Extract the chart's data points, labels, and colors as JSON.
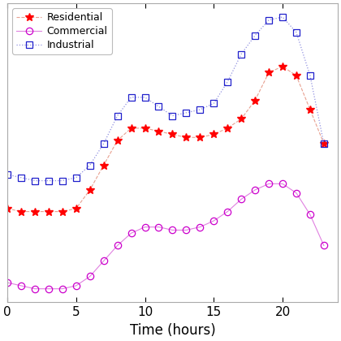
{
  "xlabel": "Time (hours)",
  "xlim": [
    0,
    24
  ],
  "xticks": [
    0,
    5,
    10,
    15,
    20
  ],
  "hours": [
    0,
    1,
    2,
    3,
    4,
    5,
    6,
    7,
    8,
    9,
    10,
    11,
    12,
    13,
    14,
    15,
    16,
    17,
    18,
    19,
    20,
    21,
    22,
    23
  ],
  "residential": [
    0.44,
    0.43,
    0.43,
    0.43,
    0.43,
    0.44,
    0.5,
    0.58,
    0.66,
    0.7,
    0.7,
    0.69,
    0.68,
    0.67,
    0.67,
    0.68,
    0.7,
    0.73,
    0.79,
    0.88,
    0.9,
    0.87,
    0.76,
    0.65
  ],
  "commercial": [
    0.2,
    0.19,
    0.18,
    0.18,
    0.18,
    0.19,
    0.22,
    0.27,
    0.32,
    0.36,
    0.38,
    0.38,
    0.37,
    0.37,
    0.38,
    0.4,
    0.43,
    0.47,
    0.5,
    0.52,
    0.52,
    0.49,
    0.42,
    0.32
  ],
  "industrial": [
    0.55,
    0.54,
    0.53,
    0.53,
    0.53,
    0.54,
    0.58,
    0.65,
    0.74,
    0.8,
    0.8,
    0.77,
    0.74,
    0.75,
    0.76,
    0.78,
    0.85,
    0.94,
    1.0,
    1.05,
    1.06,
    1.01,
    0.87,
    0.65
  ],
  "res_line_color": "#e8a090",
  "res_marker_color": "#ff0000",
  "com_line_color": "#e080e0",
  "com_marker_color": "#cc00cc",
  "ind_line_color": "#9090e0",
  "ind_marker_color": "#2020cc",
  "bg_color": "#f8f8f8"
}
